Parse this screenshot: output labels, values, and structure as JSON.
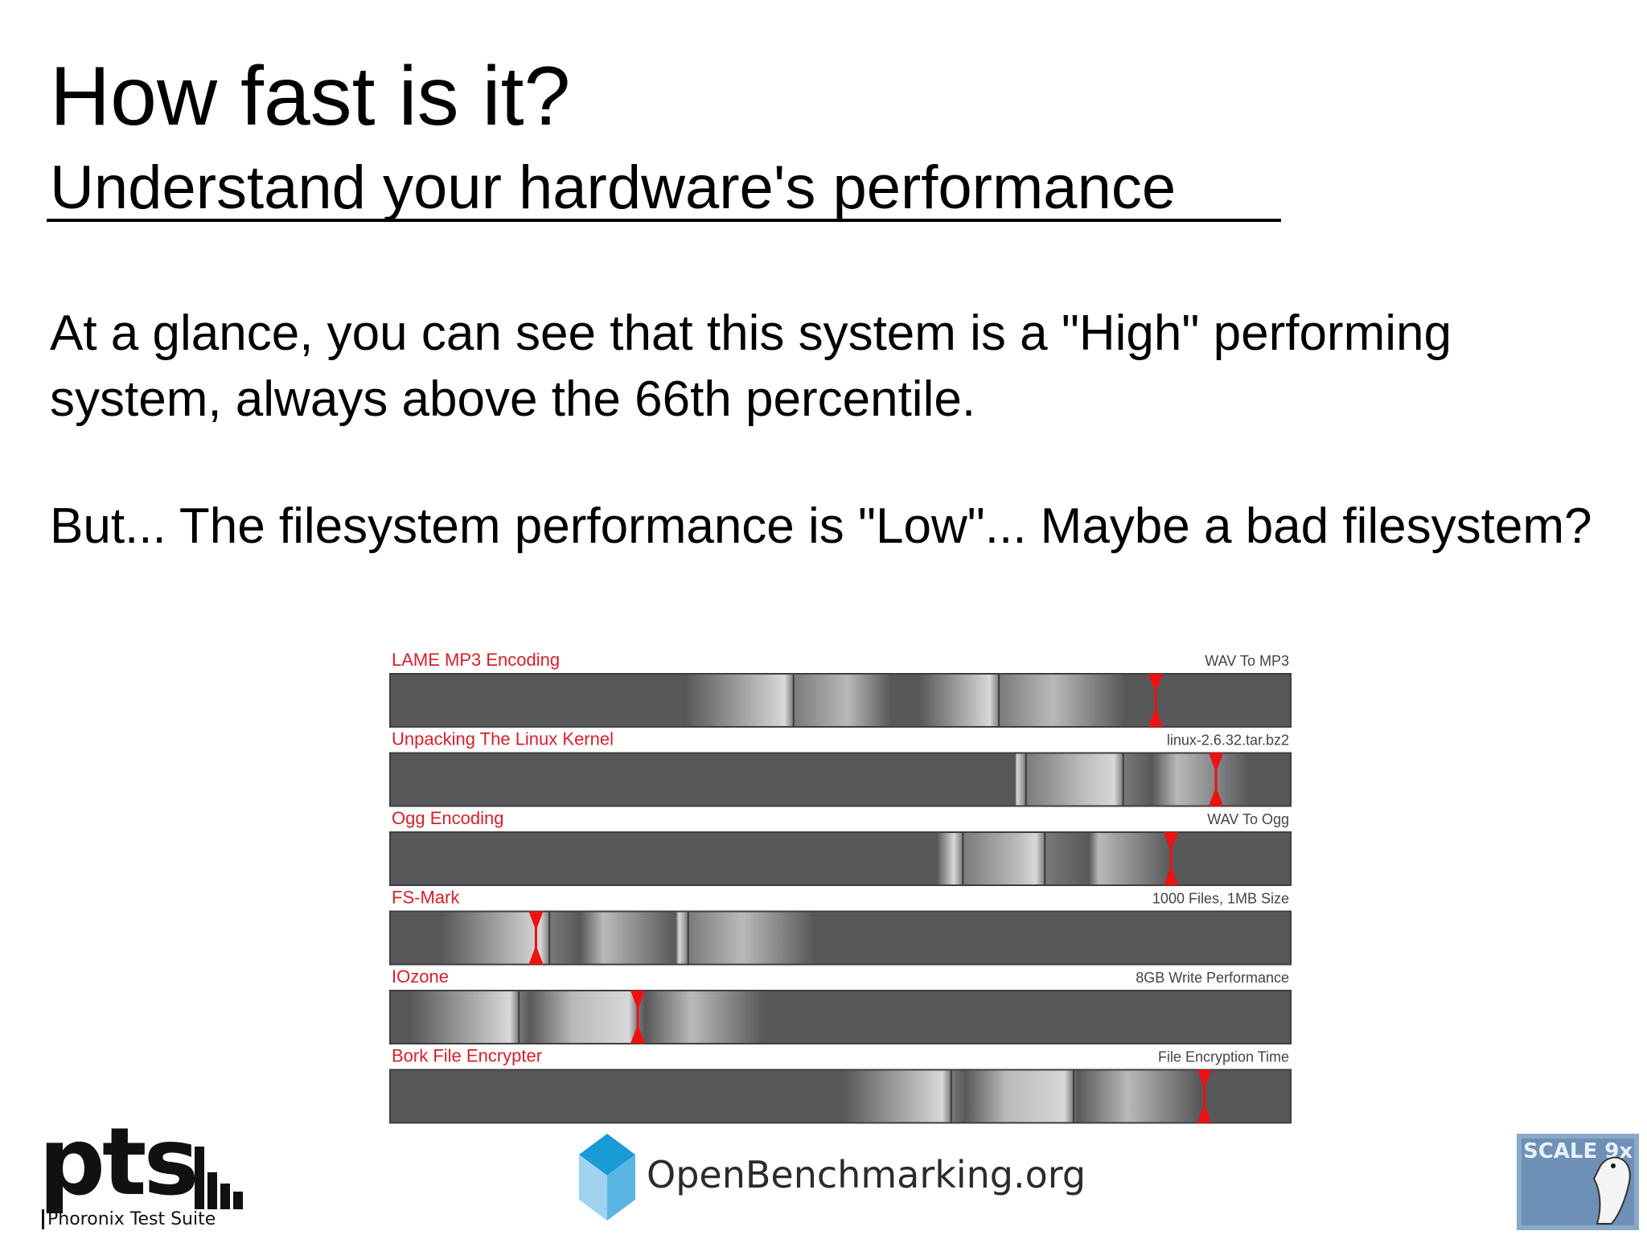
{
  "slide": {
    "title": "How fast is it?",
    "subtitle": "Understand your hardware's performance",
    "paragraphs": [
      "At a glance, you can see that this system is a \"High\" performing system, always above the 66th percentile.",
      "But...  The filesystem performance is \"Low\"... Maybe a bad filesystem?"
    ]
  },
  "chart_data": {
    "type": "percentile-heat-bars",
    "title": "",
    "rows": [
      {
        "name": "LAME MP3 Encoding",
        "label_right": "WAV To MP3",
        "marker": 0.85,
        "dividers": [
          0.448,
          0.676
        ]
      },
      {
        "name": "Unpacking The Linux Kernel",
        "label_right": "linux-2.6.32.tar.bz2",
        "marker": 0.917,
        "dividers": [
          0.706,
          0.814
        ]
      },
      {
        "name": "Ogg Encoding",
        "label_right": "WAV To Ogg",
        "marker": 0.867,
        "dividers": [
          0.636,
          0.727
        ]
      },
      {
        "name": "FS-Mark",
        "label_right": "1000 Files, 1MB Size",
        "marker": 0.162,
        "dividers": [
          0.177,
          0.331
        ]
      },
      {
        "name": "IOzone",
        "label_right": "8GB Write Performance",
        "marker": 0.275,
        "dividers": [
          0.143,
          0.275
        ]
      },
      {
        "name": "Bork File Encrypter",
        "label_right": "File Encryption Time",
        "marker": 0.904,
        "dividers": [
          0.623,
          0.759
        ]
      }
    ],
    "colors": {
      "label": "#d6202a",
      "marker": "#ee1111",
      "bar_dark": "#58585b"
    }
  },
  "footer": {
    "pts_logo_word": "pts",
    "pts_tagline": "Phoronix Test Suite",
    "openbenchmarking_text": "OpenBenchmarking.org",
    "scale_logo_text": "SCALE 9x"
  }
}
